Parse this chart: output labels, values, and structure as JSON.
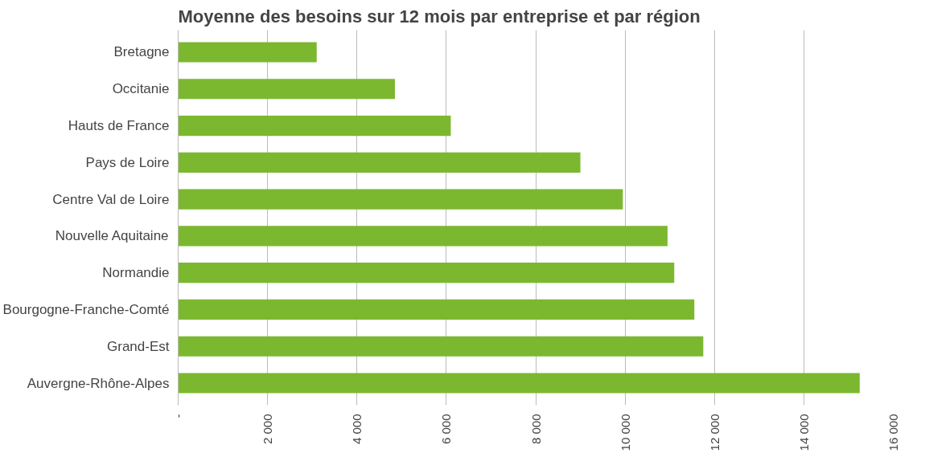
{
  "chart_data": {
    "type": "bar",
    "orientation": "horizontal",
    "title": "Moyenne des besoins sur 12 mois par entreprise et par région",
    "categories": [
      "Bretagne",
      "Occitanie",
      "Hauts de France",
      "Pays de Loire",
      "Centre Val de Loire",
      "Nouvelle Aquitaine",
      "Normandie",
      "Bourgogne-Franche-Comté",
      "Grand-Est",
      "Auvergne-Rhône-Alpes"
    ],
    "values": [
      3100,
      4850,
      6100,
      9000,
      9950,
      10950,
      11100,
      11550,
      11750,
      15250
    ],
    "color": "#7cb82f",
    "xlim": [
      0,
      16000
    ],
    "xticks": [
      {
        "value": 0,
        "label": "-"
      },
      {
        "value": 2000,
        "label": "2 000"
      },
      {
        "value": 4000,
        "label": "4 000"
      },
      {
        "value": 6000,
        "label": "6 000"
      },
      {
        "value": 8000,
        "label": "8 000"
      },
      {
        "value": 10000,
        "label": "10 000"
      },
      {
        "value": 12000,
        "label": "12 000"
      },
      {
        "value": 14000,
        "label": "14 000"
      },
      {
        "value": 16000,
        "label": "16 000"
      }
    ],
    "grid": "x"
  }
}
